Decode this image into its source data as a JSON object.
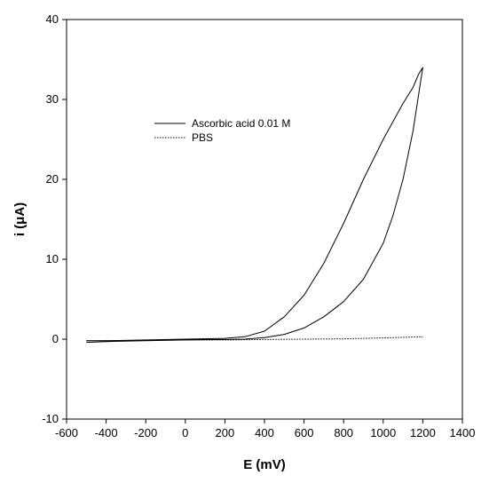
{
  "chart_data": {
    "type": "line",
    "title": "",
    "xlabel": "E (mV)",
    "ylabel": "i (μA)",
    "xlim": [
      -600,
      1400
    ],
    "ylim": [
      -10,
      40
    ],
    "xticks": [
      -600,
      -400,
      -200,
      0,
      200,
      400,
      600,
      800,
      1000,
      1200,
      1400
    ],
    "yticks": [
      -10,
      0,
      10,
      20,
      30,
      40
    ],
    "grid": false,
    "legend_position": "upper-left",
    "series": [
      {
        "name": "Ascorbic acid 0.01 M",
        "style": "solid",
        "color": "#000000",
        "x": [
          -500,
          -400,
          -200,
          0,
          200,
          300,
          400,
          500,
          600,
          700,
          800,
          900,
          1000,
          1100,
          1150,
          1180,
          1200,
          1200,
          1150,
          1100,
          1050,
          1000,
          900,
          800,
          700,
          600,
          500,
          400,
          300,
          200,
          0,
          -200,
          -400,
          -500
        ],
        "y": [
          -0.2,
          -0.2,
          -0.1,
          0.0,
          0.1,
          0.3,
          1.0,
          2.8,
          5.5,
          9.5,
          14.5,
          20.0,
          25.0,
          29.5,
          31.5,
          33.2,
          34.0,
          34.0,
          26.0,
          20.0,
          15.5,
          12.0,
          7.5,
          4.7,
          2.8,
          1.4,
          0.6,
          0.2,
          0.0,
          -0.05,
          -0.1,
          -0.2,
          -0.3,
          -0.4
        ]
      },
      {
        "name": "PBS",
        "style": "dotted",
        "color": "#000000",
        "x": [
          -500,
          -200,
          0,
          200,
          400,
          600,
          800,
          1000,
          1200
        ],
        "y": [
          -0.2,
          -0.15,
          -0.1,
          -0.1,
          -0.05,
          0.0,
          0.05,
          0.15,
          0.3
        ]
      }
    ]
  }
}
